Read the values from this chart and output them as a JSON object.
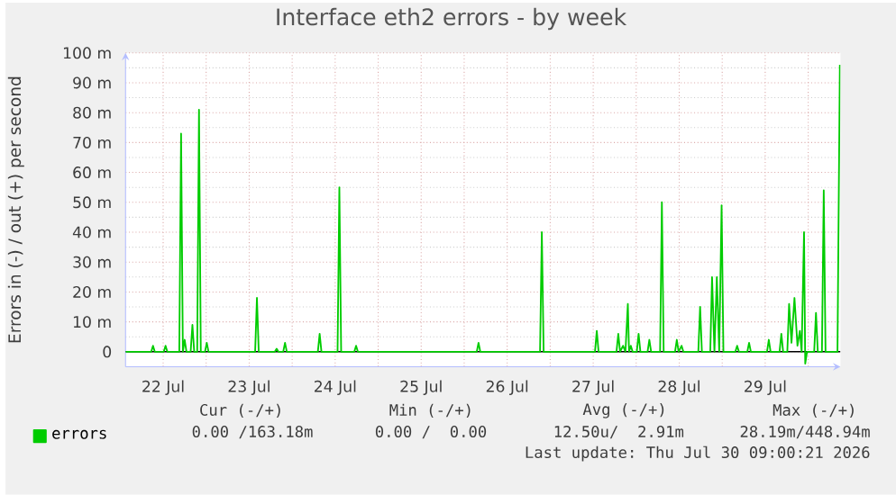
{
  "chart_data": {
    "type": "line",
    "title": "Interface eth2 errors - by week",
    "ylabel": "Errors in (-) / out (+) per second",
    "xlim": [
      "2026-07-22T01:30",
      "2026-07-30T09:00"
    ],
    "xticks": [
      {
        "value": "2026-07-22T12:00",
        "label": "22 Jul"
      },
      {
        "value": "2026-07-23T00:00",
        "label": null
      },
      {
        "value": "2026-07-23T12:00",
        "label": "23 Jul"
      },
      {
        "value": "2026-07-24T00:00",
        "label": null
      },
      {
        "value": "2026-07-24T12:00",
        "label": "24 Jul"
      },
      {
        "value": "2026-07-25T00:00",
        "label": null
      },
      {
        "value": "2026-07-25T12:00",
        "label": "25 Jul"
      },
      {
        "value": "2026-07-26T00:00",
        "label": null
      },
      {
        "value": "2026-07-26T12:00",
        "label": "26 Jul"
      },
      {
        "value": "2026-07-27T00:00",
        "label": null
      },
      {
        "value": "2026-07-27T12:00",
        "label": "27 Jul"
      },
      {
        "value": "2026-07-28T00:00",
        "label": null
      },
      {
        "value": "2026-07-28T12:00",
        "label": "28 Jul"
      },
      {
        "value": "2026-07-29T00:00",
        "label": null
      },
      {
        "value": "2026-07-29T12:00",
        "label": "29 Jul"
      },
      {
        "value": "2026-07-30T00:00",
        "label": null
      }
    ],
    "ylim": [
      -5,
      100
    ],
    "yticks": [
      0,
      {
        "value": 10,
        "label": "10 m"
      },
      {
        "value": 20,
        "label": "20 m"
      },
      {
        "value": 30,
        "label": "30 m"
      },
      {
        "value": 40,
        "label": "40 m"
      },
      {
        "value": 50,
        "label": "50 m"
      },
      {
        "value": 60,
        "label": "60 m"
      },
      {
        "value": 70,
        "label": "70 m"
      },
      {
        "value": 80,
        "label": "80 m"
      },
      {
        "value": 90,
        "label": "90 m"
      },
      {
        "value": 100,
        "label": "100 m"
      }
    ],
    "grid": true,
    "legend": "bottom left",
    "ref_lines": [
      {
        "axis": "y",
        "value": 0,
        "color": "#000000"
      }
    ],
    "x": [
      "2026-07-22T01:30",
      "2026-07-22T08:40",
      "2026-07-22T09:10",
      "2026-07-22T09:40",
      "2026-07-22T12:10",
      "2026-07-22T12:40",
      "2026-07-22T13:10",
      "2026-07-22T16:30",
      "2026-07-22T17:00",
      "2026-07-22T17:30",
      "2026-07-22T18:00",
      "2026-07-22T18:30",
      "2026-07-22T19:40",
      "2026-07-22T20:10",
      "2026-07-22T20:40",
      "2026-07-22T21:30",
      "2026-07-22T22:00",
      "2026-07-22T22:30",
      "2026-07-22T23:40",
      "2026-07-23T00:10",
      "2026-07-23T00:40",
      "2026-07-23T13:40",
      "2026-07-23T14:10",
      "2026-07-23T14:40",
      "2026-07-23T19:10",
      "2026-07-23T19:40",
      "2026-07-23T20:10",
      "2026-07-23T21:30",
      "2026-07-23T22:00",
      "2026-07-23T22:30",
      "2026-07-24T07:10",
      "2026-07-24T07:40",
      "2026-07-24T08:10",
      "2026-07-24T12:40",
      "2026-07-24T13:10",
      "2026-07-24T13:40",
      "2026-07-24T17:20",
      "2026-07-24T17:50",
      "2026-07-24T18:20",
      "2026-07-26T03:30",
      "2026-07-26T04:00",
      "2026-07-26T04:30",
      "2026-07-26T21:10",
      "2026-07-26T21:40",
      "2026-07-26T22:10",
      "2026-07-27T12:30",
      "2026-07-27T13:00",
      "2026-07-27T13:30",
      "2026-07-27T18:30",
      "2026-07-27T19:00",
      "2026-07-27T19:30",
      "2026-07-27T20:20",
      "2026-07-27T21:00",
      "2026-07-27T21:40",
      "2026-07-27T22:00",
      "2026-07-27T22:30",
      "2026-07-27T23:00",
      "2026-07-28T00:10",
      "2026-07-28T00:40",
      "2026-07-28T01:10",
      "2026-07-28T03:10",
      "2026-07-28T03:40",
      "2026-07-28T04:10",
      "2026-07-28T06:40",
      "2026-07-28T07:10",
      "2026-07-28T07:40",
      "2026-07-28T10:50",
      "2026-07-28T11:20",
      "2026-07-28T11:50",
      "2026-07-28T12:40",
      "2026-07-28T13:10",
      "2026-07-28T17:20",
      "2026-07-28T17:50",
      "2026-07-28T18:20",
      "2026-07-28T20:40",
      "2026-07-28T21:10",
      "2026-07-28T21:50",
      "2026-07-28T22:30",
      "2026-07-28T23:10",
      "2026-07-28T23:50",
      "2026-07-29T00:20",
      "2026-07-29T03:40",
      "2026-07-29T04:10",
      "2026-07-29T04:40",
      "2026-07-29T07:00",
      "2026-07-29T07:30",
      "2026-07-29T08:00",
      "2026-07-29T12:30",
      "2026-07-29T13:00",
      "2026-07-29T13:30",
      "2026-07-29T16:00",
      "2026-07-29T16:30",
      "2026-07-29T17:00",
      "2026-07-29T18:10",
      "2026-07-29T18:40",
      "2026-07-29T19:20",
      "2026-07-29T20:10",
      "2026-07-29T21:00",
      "2026-07-29T21:40",
      "2026-07-29T22:10",
      "2026-07-29T22:50",
      "2026-07-29T23:10",
      "2026-07-29T23:40",
      "2026-07-30T01:40",
      "2026-07-30T02:10",
      "2026-07-30T02:40",
      "2026-07-30T03:50",
      "2026-07-30T04:20",
      "2026-07-30T04:50",
      "2026-07-30T08:10",
      "2026-07-30T08:50"
    ],
    "series": [
      {
        "name": "errors",
        "color": "#00cc00",
        "values": [
          0,
          0,
          2,
          0,
          0,
          2,
          0,
          0,
          73,
          0,
          4,
          0,
          0,
          9,
          0,
          0,
          81,
          0,
          0,
          3,
          0,
          0,
          18,
          0,
          0,
          1,
          0,
          0,
          3,
          0,
          0,
          6,
          0,
          0,
          55,
          0,
          0,
          2,
          0,
          0,
          3,
          0,
          0,
          40,
          0,
          0,
          7,
          0,
          0,
          6,
          0,
          2,
          0,
          16,
          0,
          2,
          0,
          0,
          6,
          0,
          0,
          4,
          0,
          0,
          50,
          0,
          0,
          4,
          0,
          2,
          0,
          0,
          15,
          0,
          0,
          25,
          0,
          25,
          0,
          49,
          0,
          0,
          2,
          0,
          0,
          3,
          0,
          0,
          4,
          0,
          0,
          6,
          0,
          0,
          16,
          3,
          18,
          2,
          7,
          0,
          40,
          -4,
          0,
          0,
          13,
          0,
          0,
          54,
          0,
          0,
          96
        ]
      }
    ],
    "annotations": [
      "Cur (-/+)",
      "Min (-/+)",
      "Avg (-/+)",
      "Max (-/+)",
      "0.00 /163.18m",
      "0.00 /  0.00",
      "12.50u/  2.91m",
      "28.19m/448.94m",
      "Last update: Thu Jul 30 09:00:21 2026"
    ]
  }
}
